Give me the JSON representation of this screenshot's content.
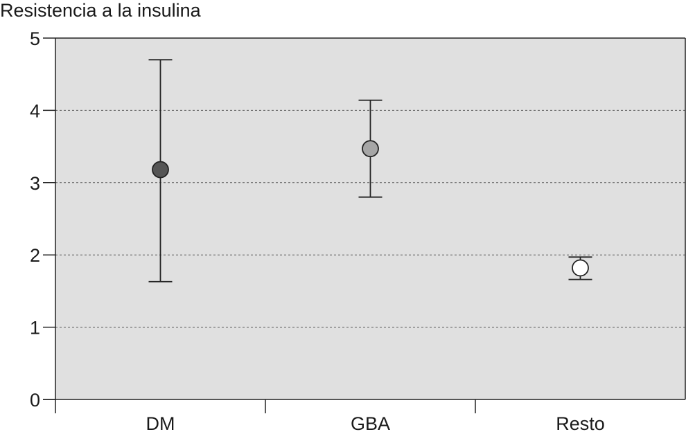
{
  "chart_data": {
    "type": "scatter",
    "title": "",
    "ylabel": "Resistencia a la insulina",
    "xlabel": "",
    "ylim": [
      0,
      5
    ],
    "yticks": [
      0,
      1,
      2,
      3,
      4,
      5
    ],
    "grid": "horizontal dashed",
    "legend": "none",
    "plot_background": "#e0e0e0",
    "categories": [
      "DM",
      "GBA",
      "Resto"
    ],
    "points": [
      {
        "category": "DM",
        "value": 3.18,
        "lower": 1.63,
        "upper": 4.7,
        "fill": "#555555"
      },
      {
        "category": "GBA",
        "value": 3.47,
        "lower": 2.8,
        "upper": 4.14,
        "fill": "#a6a6a6"
      },
      {
        "category": "Resto",
        "value": 1.82,
        "lower": 1.66,
        "upper": 1.97,
        "fill": "#ffffff"
      }
    ]
  }
}
